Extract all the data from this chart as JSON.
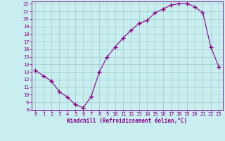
{
  "x": [
    0,
    1,
    2,
    3,
    4,
    5,
    6,
    7,
    8,
    9,
    10,
    11,
    12,
    13,
    14,
    15,
    16,
    17,
    18,
    19,
    20,
    21,
    22,
    23
  ],
  "y": [
    13.2,
    12.5,
    11.8,
    10.4,
    9.7,
    8.7,
    8.3,
    9.8,
    13.0,
    15.0,
    16.3,
    17.5,
    18.5,
    19.4,
    19.8,
    20.8,
    21.3,
    21.8,
    22.0,
    22.0,
    21.6,
    20.8,
    16.3,
    13.7
  ],
  "ylim": [
    8,
    22
  ],
  "xlim": [
    -0.5,
    23.5
  ],
  "yticks": [
    8,
    9,
    10,
    11,
    12,
    13,
    14,
    15,
    16,
    17,
    18,
    19,
    20,
    21,
    22
  ],
  "xticks": [
    0,
    1,
    2,
    3,
    4,
    5,
    6,
    7,
    8,
    9,
    10,
    11,
    12,
    13,
    14,
    15,
    16,
    17,
    18,
    19,
    20,
    21,
    22,
    23
  ],
  "xlabel": "Windchill (Refroidissement éolien,°C)",
  "line_color": "#880088",
  "marker_color": "#880088",
  "bg_color": "#c8eef0",
  "grid_color": "#a0cccc",
  "axis_color": "#880088",
  "tick_color": "#880088",
  "label_color": "#880088"
}
